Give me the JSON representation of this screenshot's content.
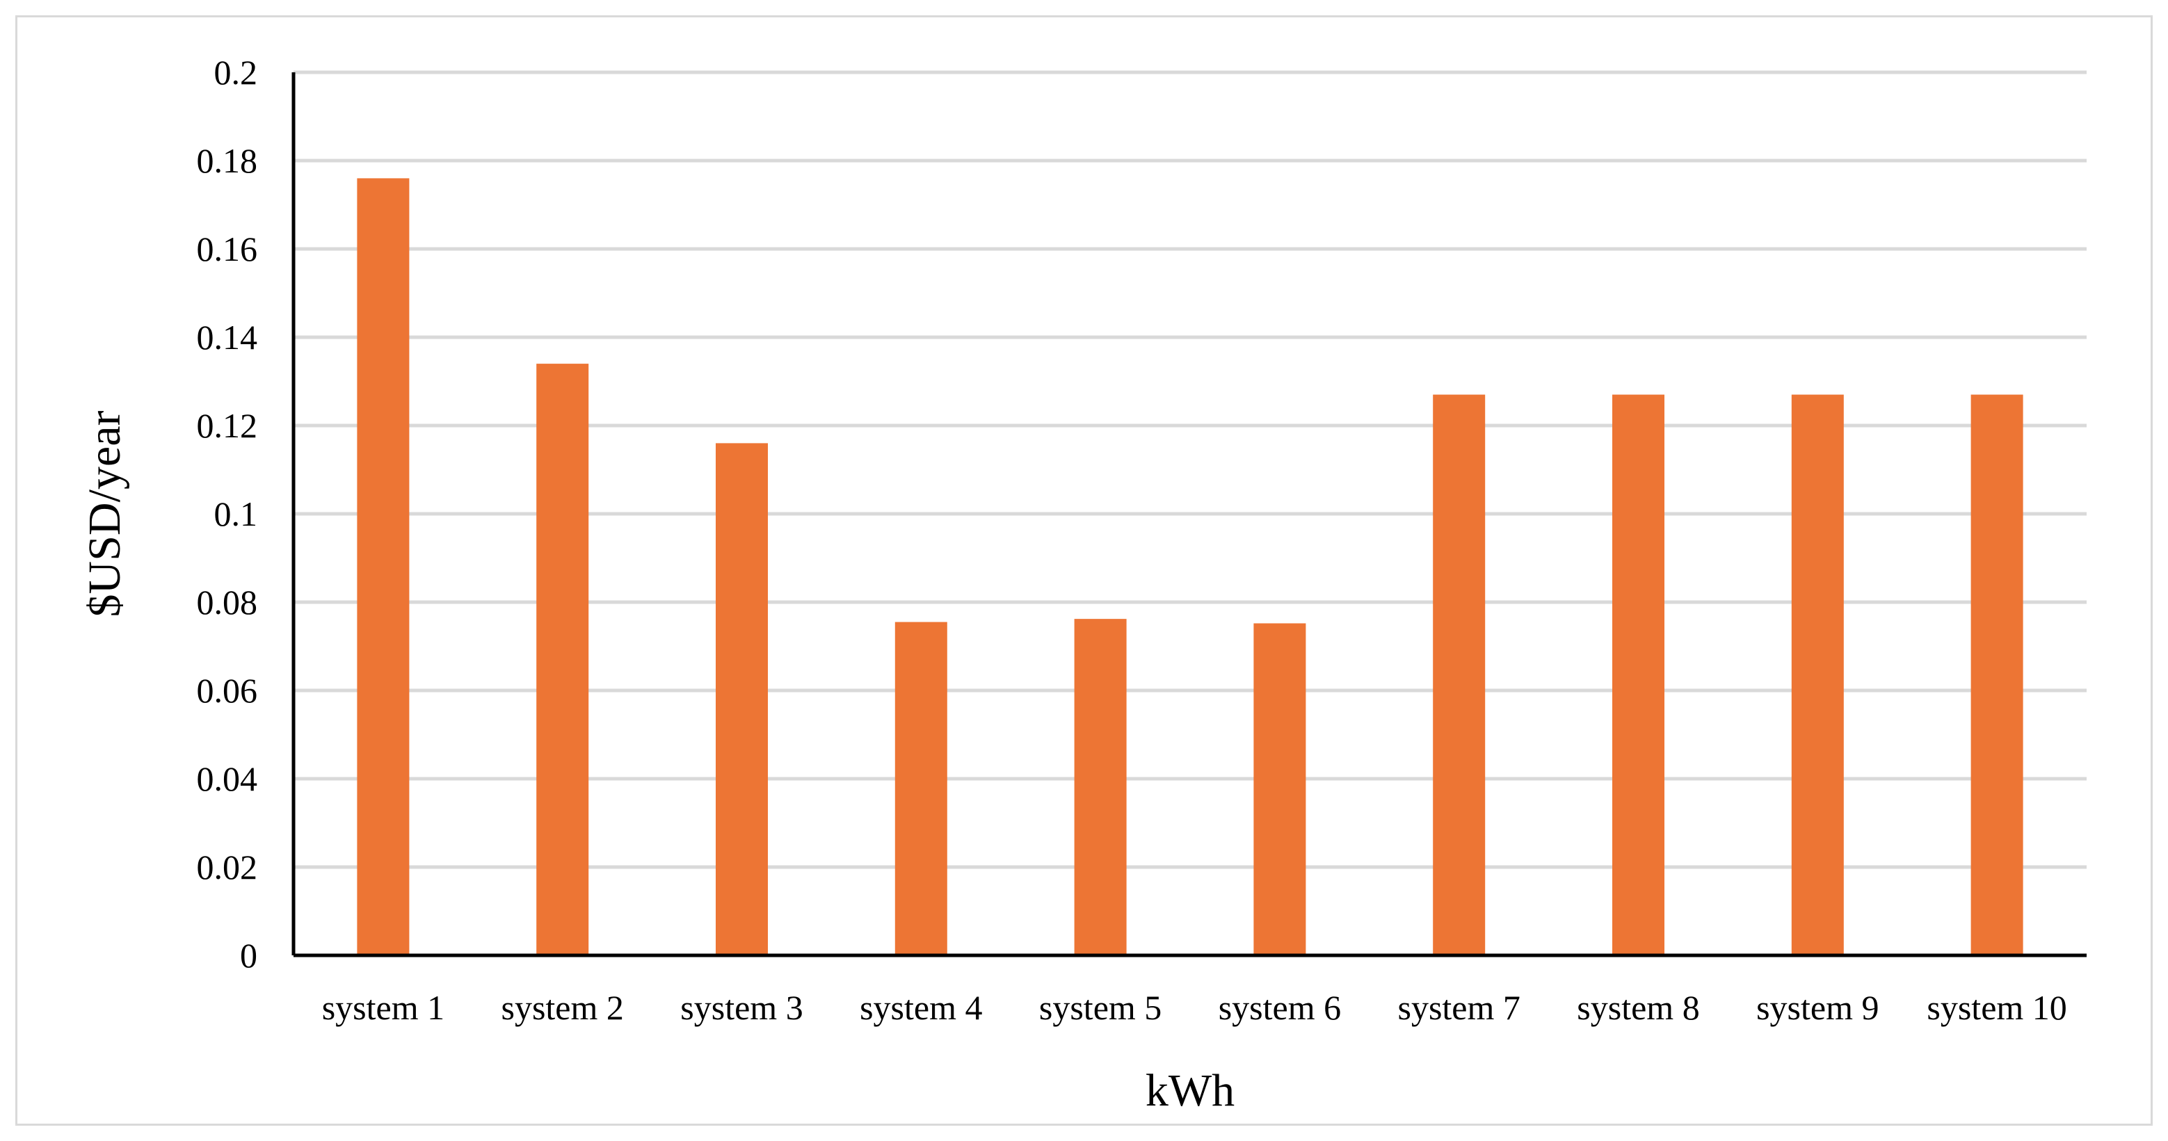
{
  "chart_data": {
    "type": "bar",
    "title": "",
    "xlabel": "kWh",
    "ylabel": "$USD/year",
    "categories": [
      "system 1",
      "system 2",
      "system 3",
      "system 4",
      "system 5",
      "system 6",
      "system 7",
      "system 8",
      "system 9",
      "system 10"
    ],
    "values": [
      0.176,
      0.134,
      0.116,
      0.0755,
      0.0762,
      0.0752,
      0.127,
      0.127,
      0.127,
      0.127
    ],
    "ylim": [
      0,
      0.2
    ],
    "yticks": [
      "0",
      "0.02",
      "0.04",
      "0.06",
      "0.08",
      "0.1",
      "0.12",
      "0.14",
      "0.16",
      "0.18",
      "0.2"
    ],
    "grid": true,
    "legend": "none",
    "colors": {
      "bar": "#ED7534",
      "grid": "#d9d9d9",
      "axis": "#000000",
      "frame": "#d9d9d9"
    }
  }
}
